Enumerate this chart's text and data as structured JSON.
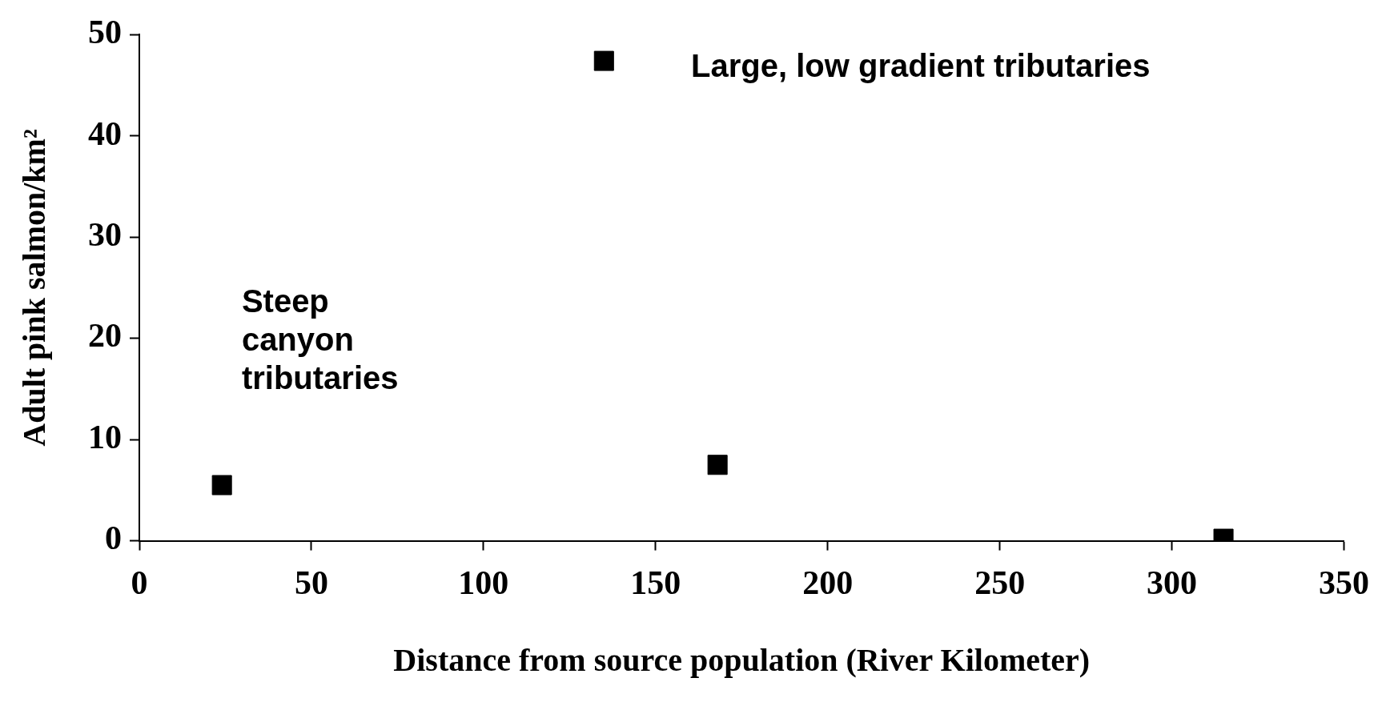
{
  "chart_data": {
    "type": "scatter",
    "xlabel": "Distance from source population (River Kilometer)",
    "ylabel": "Adult pink salmon/km²",
    "x": [
      24,
      135,
      168,
      315
    ],
    "values": [
      5.5,
      47.4,
      7.5,
      0.2
    ],
    "color": "#000000",
    "marker": "square",
    "xlim": [
      0,
      350
    ],
    "xticks": [
      0,
      50,
      100,
      150,
      200,
      250,
      300,
      350
    ],
    "ylim": [
      0,
      50
    ],
    "yticks": [
      0,
      10,
      20,
      30,
      40,
      50
    ],
    "grid": false,
    "legend": false,
    "annotations": [
      "Large, low gradient tributaries",
      "Steep canyon tributaries"
    ]
  }
}
